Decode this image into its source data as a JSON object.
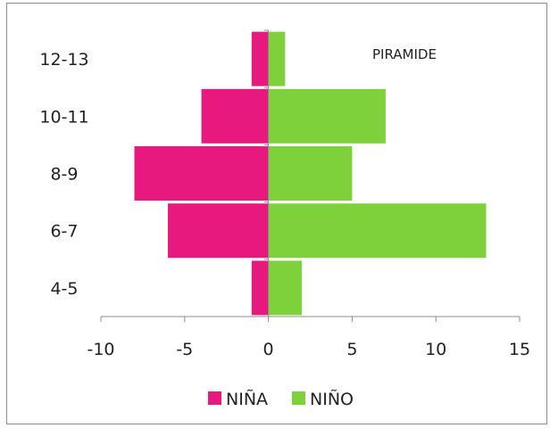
{
  "chart_data": {
    "type": "bar",
    "orientation": "horizontal",
    "title": "PIRAMIDE",
    "categories": [
      "4-5",
      "6-7",
      "8-9",
      "10-11",
      "12-13"
    ],
    "series": [
      {
        "name": "NIÑA",
        "color": "#e8197e",
        "values": [
          -1,
          -6,
          -8,
          -4,
          -1
        ]
      },
      {
        "name": "NIÑO",
        "color": "#7ed13a",
        "values": [
          2,
          13,
          5,
          7,
          1
        ]
      }
    ],
    "xlim": [
      -10,
      15
    ],
    "xticks": [
      -10,
      -5,
      0,
      5,
      10,
      15
    ],
    "grid": false,
    "legend_position": "bottom"
  }
}
